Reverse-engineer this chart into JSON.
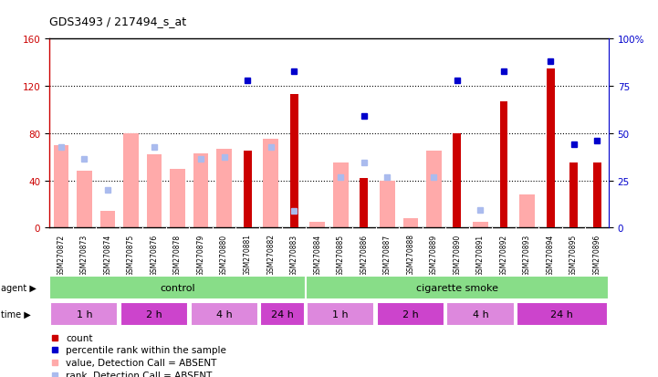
{
  "title": "GDS3493 / 217494_s_at",
  "samples": [
    "GSM270872",
    "GSM270873",
    "GSM270874",
    "GSM270875",
    "GSM270876",
    "GSM270878",
    "GSM270879",
    "GSM270880",
    "GSM270881",
    "GSM270882",
    "GSM270883",
    "GSM270884",
    "GSM270885",
    "GSM270886",
    "GSM270887",
    "GSM270888",
    "GSM270889",
    "GSM270890",
    "GSM270891",
    "GSM270892",
    "GSM270893",
    "GSM270894",
    "GSM270895",
    "GSM270896"
  ],
  "count_values": [
    null,
    null,
    null,
    null,
    null,
    null,
    null,
    null,
    65,
    null,
    113,
    null,
    null,
    42,
    null,
    null,
    null,
    80,
    null,
    107,
    null,
    135,
    55,
    55
  ],
  "percentile_values": [
    null,
    null,
    null,
    null,
    null,
    null,
    null,
    null,
    78,
    null,
    83,
    null,
    null,
    59,
    null,
    null,
    null,
    78,
    null,
    83,
    null,
    88,
    44,
    46
  ],
  "absent_value": [
    70,
    48,
    14,
    80,
    62,
    50,
    63,
    67,
    null,
    75,
    null,
    5,
    55,
    null,
    40,
    8,
    65,
    null,
    5,
    null,
    28,
    null,
    null,
    null
  ],
  "absent_rank": [
    68,
    58,
    32,
    null,
    68,
    null,
    58,
    60,
    null,
    68,
    14,
    null,
    43,
    55,
    43,
    null,
    43,
    null,
    15,
    null,
    null,
    null,
    null,
    null
  ],
  "ylim_left": [
    0,
    160
  ],
  "ylim_right": [
    0,
    100
  ],
  "yticks_left": [
    0,
    40,
    80,
    120,
    160
  ],
  "yticks_right": [
    0,
    25,
    50,
    75,
    100
  ],
  "ytick_labels_right": [
    "0",
    "25",
    "50",
    "75",
    "100%"
  ],
  "count_color": "#cc0000",
  "absent_value_color": "#ffaaaa",
  "absent_rank_color": "#aabbee",
  "percentile_color": "#0000cc",
  "agent_groups": [
    {
      "label": "control",
      "start": 0,
      "end": 11
    },
    {
      "label": "cigarette smoke",
      "start": 11,
      "end": 24
    }
  ],
  "time_groups": [
    {
      "label": "1 h",
      "start": 0,
      "end": 3,
      "dark": false
    },
    {
      "label": "2 h",
      "start": 3,
      "end": 6,
      "dark": true
    },
    {
      "label": "4 h",
      "start": 6,
      "end": 9,
      "dark": false
    },
    {
      "label": "24 h",
      "start": 9,
      "end": 11,
      "dark": true
    },
    {
      "label": "1 h",
      "start": 11,
      "end": 14,
      "dark": false
    },
    {
      "label": "2 h",
      "start": 14,
      "end": 17,
      "dark": true
    },
    {
      "label": "4 h",
      "start": 17,
      "end": 20,
      "dark": false
    },
    {
      "label": "24 h",
      "start": 20,
      "end": 24,
      "dark": true
    }
  ],
  "agent_color": "#88dd88",
  "time_color_lt": "#dd88dd",
  "time_color_dk": "#cc44cc",
  "legend_items": [
    {
      "color": "#cc0000",
      "label": "count"
    },
    {
      "color": "#0000cc",
      "label": "percentile rank within the sample"
    },
    {
      "color": "#ffaaaa",
      "label": "value, Detection Call = ABSENT"
    },
    {
      "color": "#aabbee",
      "label": "rank, Detection Call = ABSENT"
    }
  ]
}
